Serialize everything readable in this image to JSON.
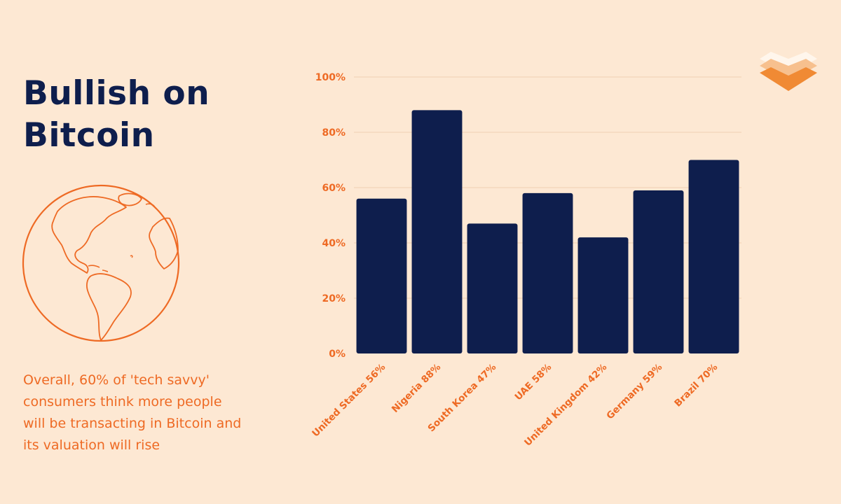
{
  "heading": {
    "line1": "Bullish on",
    "line2": "Bitcoin"
  },
  "caption": "Overall, 60% of 'tech savvy' consumers think more people will be transacting in Bitcoin and its valuation will rise",
  "icons": {
    "globe": "globe-icon",
    "logo": "brand-logo-icon"
  },
  "colors": {
    "background": "#fde8d3",
    "bar": "#0e1e4d",
    "accent": "#ee6a24",
    "title": "#0e1e4d"
  },
  "chart_data": {
    "type": "bar",
    "categories": [
      "United States 56%",
      "Nigeria 88%",
      "South Korea 47%",
      "UAE 58%",
      "United Kingdom 42%",
      "Germany 59%",
      "Brazil 70%"
    ],
    "values": [
      56,
      88,
      47,
      58,
      42,
      59,
      70
    ],
    "ylim": [
      0,
      100
    ],
    "yticks": [
      "0%",
      "20%",
      "40%",
      "60%",
      "80%",
      "100%"
    ],
    "grid": true,
    "legend": "none"
  }
}
